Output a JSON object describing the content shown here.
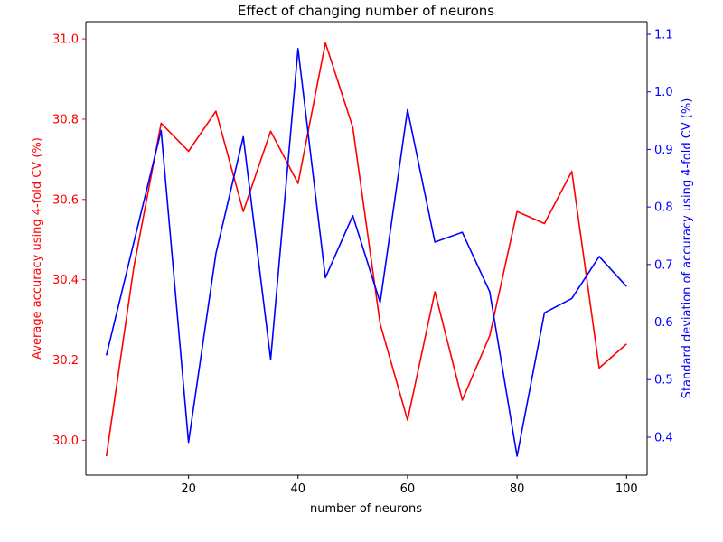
{
  "chart_data": {
    "type": "line",
    "title": "Effect of changing number of neurons",
    "xlabel": "number of neurons",
    "ylabel_left": "Average accuracy using 4-fold CV (%)",
    "ylabel_right": "Standard deviation of accuracy using 4-fold CV (%)",
    "x_ticks": [
      20,
      40,
      60,
      80,
      100
    ],
    "y_left_ticks": [
      30.0,
      30.2,
      30.4,
      30.6,
      30.8,
      31.0
    ],
    "y_right_ticks": [
      0.4,
      0.5,
      0.6,
      0.7,
      0.8,
      0.9,
      1.0,
      1.1
    ],
    "x": [
      5,
      10,
      15,
      20,
      25,
      30,
      35,
      40,
      45,
      50,
      55,
      60,
      65,
      70,
      75,
      80,
      85,
      90,
      95,
      100
    ],
    "xlim": [
      1.25,
      103.75
    ],
    "ylim_left": [
      29.913,
      31.043
    ],
    "ylim_right": [
      0.334,
      1.122
    ],
    "grid": false,
    "series": [
      {
        "axis": "left",
        "color": "#ff0000",
        "values": [
          29.96,
          30.43,
          30.79,
          30.72,
          30.82,
          30.57,
          30.77,
          30.64,
          30.99,
          30.78,
          30.29,
          30.05,
          30.37,
          30.1,
          30.26,
          30.57,
          30.54,
          30.67,
          30.18,
          30.24
        ]
      },
      {
        "axis": "right",
        "color": "#0000ff",
        "values": [
          0.542,
          0.738,
          0.933,
          0.391,
          0.719,
          0.922,
          0.535,
          1.075,
          0.677,
          0.785,
          0.634,
          0.969,
          0.739,
          0.756,
          0.653,
          0.367,
          0.616,
          0.641,
          0.714,
          0.662
        ]
      }
    ]
  }
}
